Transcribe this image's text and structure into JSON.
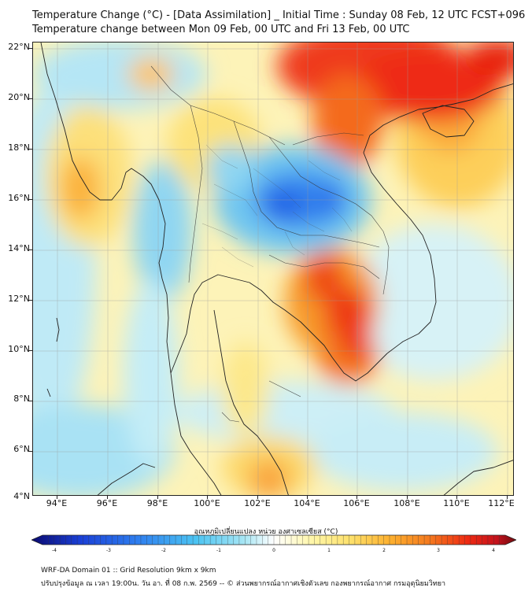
{
  "title_line1": "Temperature Change (°C) - [Data Assimilation] _ Initial Time : Sunday 08 Feb, 12 UTC FCST+096",
  "title_line2": "Temperature change between Mon 09 Feb, 00 UTC and Fri 13 Feb, 00 UTC",
  "map": {
    "latitude_labels": [
      "22°N",
      "20°N",
      "18°N",
      "16°N",
      "14°N",
      "12°N",
      "10°N",
      "8°N",
      "6°N",
      "4°N"
    ],
    "longitude_labels": [
      "94°E",
      "96°E",
      "98°E",
      "100°E",
      "102°E",
      "104°E",
      "106°E",
      "108°E",
      "110°E",
      "112°E"
    ],
    "lat_range": [
      4,
      22
    ],
    "lon_range": [
      93,
      112.5
    ]
  },
  "colorbar": {
    "title": "อุณหภูมิเปลี่ยนแปลง หน่วย องศาเซลเซียส (°C)",
    "tick_labels": [
      "-4",
      "-3",
      "-2",
      "-1",
      "0",
      "1",
      "2",
      "3",
      "4"
    ],
    "range": [
      -4,
      4
    ],
    "colors": {
      "min": "#0a0a70",
      "dark_blue": "#1a3fd6",
      "blue": "#2f7fef",
      "cyan": "#4cc4f2",
      "light_cyan": "#a8e6f4",
      "neutral": "#ffffff",
      "light_yellow": "#fff6a8",
      "yellow": "#fde06a",
      "orange": "#fdb02f",
      "dark_orange": "#f47a1f",
      "red": "#ee2a12",
      "dark_red": "#c4121c",
      "max": "#6e0c10"
    }
  },
  "footer": {
    "line1": "WRF-DA Domain 01 :: Grid Resolution 9km x 9km",
    "line2": "ปรับปรุงข้อมูล ณ เวลา 19:00น. วัน อา. ที่ 08 ก.พ. 2569 -- © ส่วนพยากรณ์อากาศเชิงตัวเลข กองพยากรณ์อากาศ กรมอุตุนิยมวิทยา"
  }
}
